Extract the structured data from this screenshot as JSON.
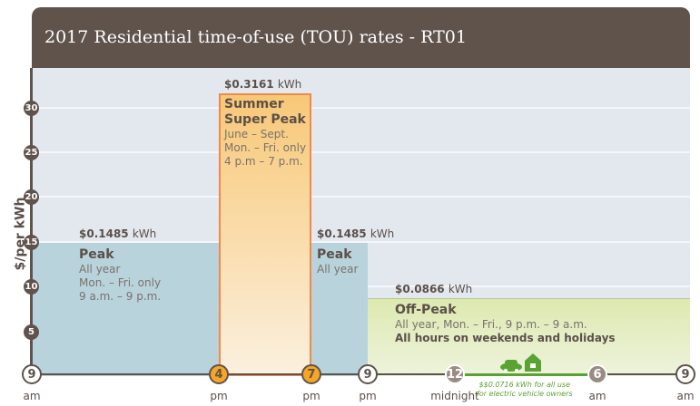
{
  "title": "2017 Residential time-of-use (TOU) rates - RT01",
  "chart_data": {
    "type": "bar",
    "ylabel": "$/per kWh",
    "yticks": [
      "5",
      "10",
      "15",
      "20",
      "25",
      "30"
    ],
    "ylim": [
      0,
      33
    ],
    "x_ticks": [
      {
        "num": "9",
        "label": "am",
        "style": "white"
      },
      {
        "num": "4",
        "label": "pm",
        "style": "orange"
      },
      {
        "num": "7",
        "label": "pm",
        "style": "orange"
      },
      {
        "num": "9",
        "label": "pm",
        "style": "white"
      },
      {
        "num": "12",
        "label": "midnight",
        "style": "gray"
      },
      {
        "num": "6",
        "label": "am",
        "style": "gray"
      },
      {
        "num": "9",
        "label": "am",
        "style": "white"
      }
    ],
    "series": [
      {
        "name": "Peak",
        "rate": "$0.1485",
        "unit": "kWh",
        "value": 14.85,
        "lines": [
          "All year",
          "Mon. – Fri. only",
          "9 a.m. – 9 p.m."
        ],
        "color": "#b9d3dc"
      },
      {
        "name": "Summer Super Peak",
        "name_lines": [
          "Summer",
          "Super Peak"
        ],
        "rate": "$0.3161",
        "unit": "kWh",
        "value": 31.61,
        "lines": [
          "June – Sept.",
          "Mon. – Fri. only",
          "4 p.m – 7 p.m."
        ],
        "color": "#f8c877"
      },
      {
        "name": "Peak",
        "rate": "$0.1485",
        "unit": "kWh",
        "value": 14.85,
        "lines": [
          "All year"
        ],
        "color": "#b9d3dc"
      },
      {
        "name": "Off-Peak",
        "rate": "$0.0866",
        "unit": "kWh",
        "value": 8.66,
        "lines": [
          "All year, Mon. – Fri., 9 p.m. – 9 a.m."
        ],
        "bold_line": "All hours on weekends and holidays",
        "color": "#dde9b0"
      }
    ],
    "ev_note": [
      "$$0.0716 kWh for all use",
      "for electric vehicle owners"
    ],
    "ev_color": "#5aa332"
  }
}
